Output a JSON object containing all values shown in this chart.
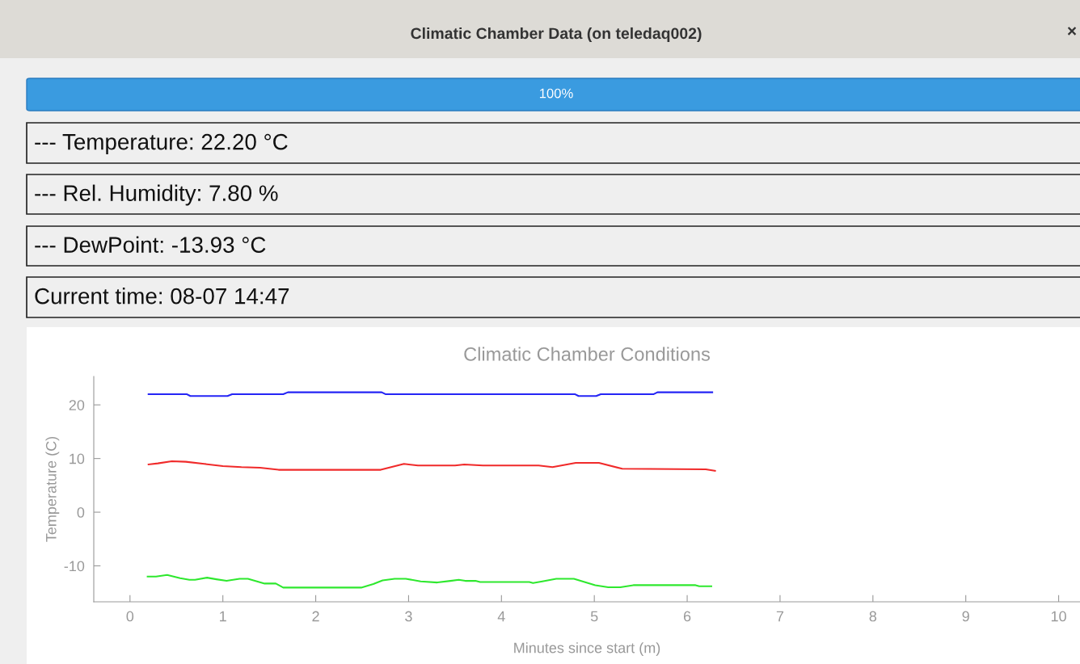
{
  "chart_data": {
    "type": "line",
    "title": "Climatic Chamber Conditions",
    "xlabel": "Minutes since start (m)",
    "ylabel": "Temperature (C)",
    "annotations": [
      "Climatic Chamber Data (on teledaq002)",
      "×",
      "100%",
      "--- Temperature: 22.20 °C",
      "--- Rel. Humidity: 7.80 %",
      "--- DewPoint: -13.93 °C",
      "Current time: 08-07 14:47"
    ],
    "series": [
      {
        "color": "#2525f5",
        "x": [
          0.2,
          0.61,
          0.65,
          1.05,
          1.1,
          1.65,
          1.7,
          2.71,
          2.75,
          4.79,
          4.83,
          5.02,
          5.07,
          5.64,
          5.68,
          6.27
        ],
        "values": [
          22.0,
          22.0,
          21.65,
          21.65,
          22.0,
          22.0,
          22.35,
          22.35,
          22.0,
          22.0,
          21.65,
          21.65,
          22.0,
          22.0,
          22.35,
          22.35
        ]
      },
      {
        "color": "#f02a2a",
        "x": [
          0.2,
          0.3,
          0.45,
          0.6,
          0.8,
          1.0,
          1.2,
          1.4,
          1.6,
          2.7,
          2.95,
          3.1,
          3.5,
          3.6,
          3.8,
          4.4,
          4.55,
          4.8,
          5.05,
          5.3,
          6.2,
          6.3
        ],
        "values": [
          8.9,
          9.1,
          9.5,
          9.4,
          9.0,
          8.6,
          8.4,
          8.3,
          7.9,
          7.9,
          9.0,
          8.7,
          8.7,
          8.9,
          8.7,
          8.7,
          8.4,
          9.2,
          9.2,
          8.1,
          8.0,
          7.7
        ]
      },
      {
        "color": "#2ee82e",
        "x": [
          0.19,
          0.28,
          0.4,
          0.54,
          0.64,
          0.7,
          0.83,
          0.93,
          1.04,
          1.18,
          1.27,
          1.45,
          1.57,
          1.65,
          2.49,
          2.62,
          2.72,
          2.85,
          2.97,
          3.13,
          3.31,
          3.45,
          3.54,
          3.61,
          3.72,
          3.77,
          4.3,
          4.34,
          4.44,
          4.59,
          4.78,
          5.01,
          5.15,
          5.28,
          5.42,
          6.09,
          6.13,
          6.26
        ],
        "values": [
          -12.0,
          -12.0,
          -11.7,
          -12.3,
          -12.6,
          -12.6,
          -12.2,
          -12.5,
          -12.8,
          -12.4,
          -12.4,
          -13.3,
          -13.3,
          -14.05,
          -14.05,
          -13.4,
          -12.7,
          -12.4,
          -12.4,
          -12.9,
          -13.1,
          -12.8,
          -12.6,
          -12.8,
          -12.8,
          -13.0,
          -13.0,
          -13.2,
          -12.9,
          -12.4,
          -12.4,
          -13.6,
          -14.0,
          -14.0,
          -13.6,
          -13.6,
          -13.8,
          -13.8
        ]
      }
    ],
    "xlim": [
      -0.39,
      10.23
    ],
    "ylim": [
      -16.7,
      25.3
    ],
    "xticks": [
      0,
      1,
      2,
      3,
      4,
      5,
      6,
      7,
      8,
      9,
      10
    ],
    "yticks": [
      -10,
      0,
      10,
      20
    ]
  }
}
